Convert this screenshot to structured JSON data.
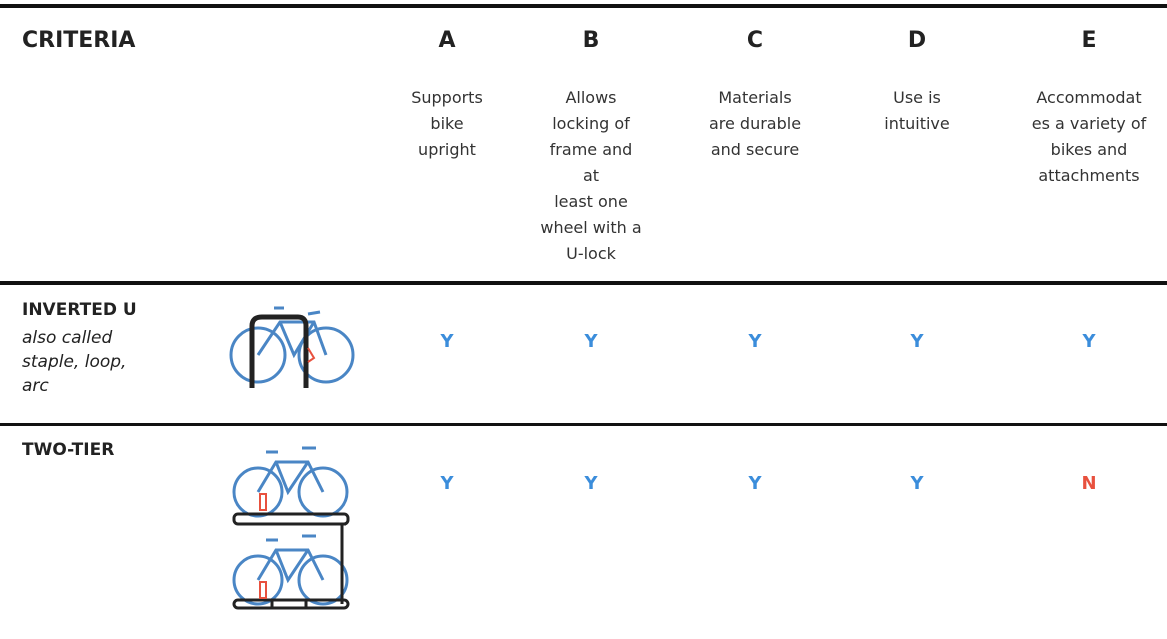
{
  "header": {
    "title": "CRITERIA",
    "columns": [
      {
        "letter": "A",
        "description": [
          "Supports",
          "bike",
          "upright"
        ]
      },
      {
        "letter": "B",
        "description": [
          "Allows",
          "locking of",
          "frame and",
          "at",
          "least one",
          "wheel with a",
          "U-lock"
        ]
      },
      {
        "letter": "C",
        "description": [
          "Materials",
          "are durable",
          "and secure"
        ]
      },
      {
        "letter": "D",
        "description": [
          "Use is",
          "intuitive"
        ]
      },
      {
        "letter": "E",
        "description": [
          "Accommodat",
          "es a variety of",
          "bikes and",
          "attachments"
        ]
      }
    ]
  },
  "rows": [
    {
      "name": "INVERTED U",
      "aliases": [
        "also called",
        "staple, loop,",
        "arc"
      ],
      "values": [
        {
          "text": "Y",
          "color": "#3b8ddb"
        },
        {
          "text": "Y",
          "color": "#3b8ddb"
        },
        {
          "text": "Y",
          "color": "#3b8ddb"
        },
        {
          "text": "Y",
          "color": "#3b8ddb"
        },
        {
          "text": "Y",
          "color": "#3b8ddb"
        }
      ]
    },
    {
      "name": "TWO-TIER",
      "values": [
        {
          "text": "Y",
          "color": "#3b8ddb"
        },
        {
          "text": "Y",
          "color": "#3b8ddb"
        },
        {
          "text": "Y",
          "color": "#3b8ddb"
        },
        {
          "text": "Y",
          "color": "#3b8ddb"
        },
        {
          "text": "N",
          "color": "#e8513e"
        }
      ]
    }
  ]
}
